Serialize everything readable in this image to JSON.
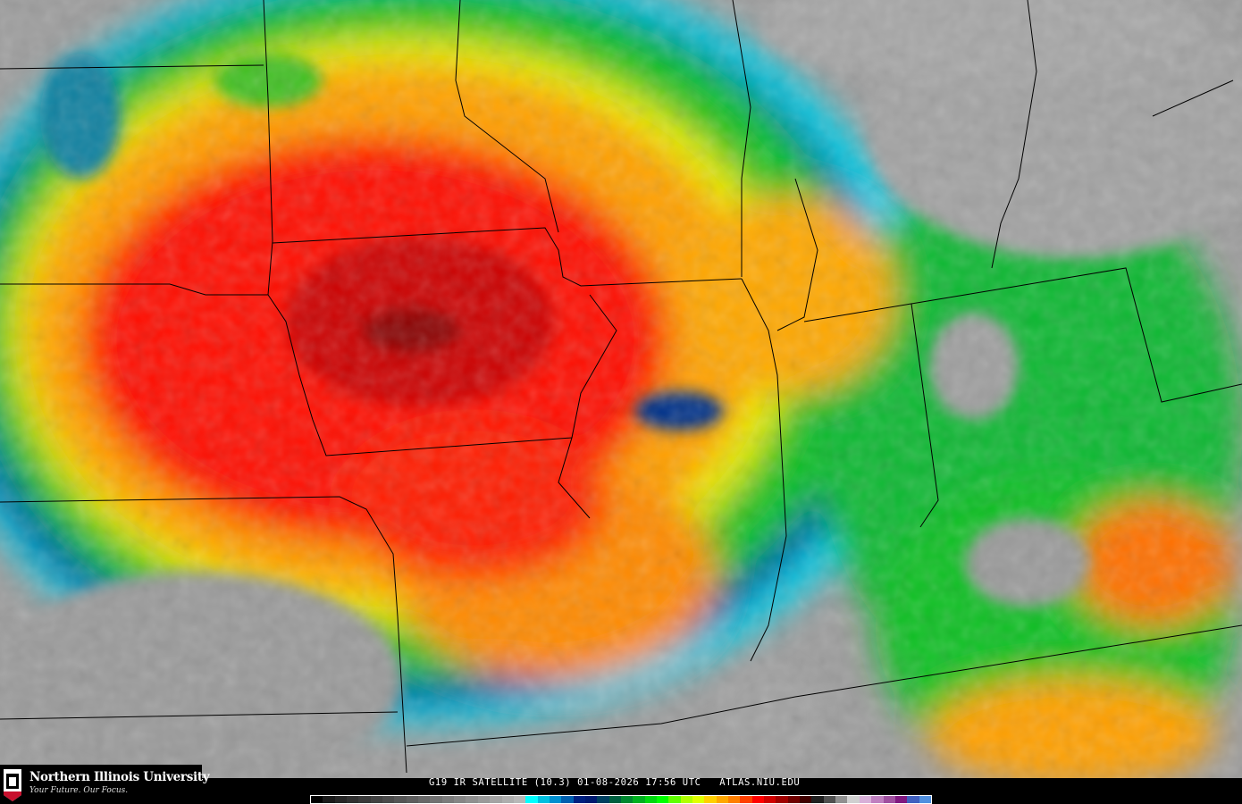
{
  "image": {
    "caption": "G19 IR SATELLITE (10.3) 01-08-2026 17:56 UTC   ATLAS.NIU.EDU"
  },
  "logo": {
    "name": "Northern Illinois University",
    "tagline": "Your Future. Our Focus.",
    "badge": "NIU"
  },
  "colorbar": {
    "colors": [
      "#000000",
      "#1a1a1a",
      "#262626",
      "#303030",
      "#393939",
      "#424242",
      "#4b4b4b",
      "#555555",
      "#5e5e5e",
      "#686868",
      "#727272",
      "#7c7c7c",
      "#868686",
      "#909090",
      "#9a9a9a",
      "#a4a4a4",
      "#aeaeae",
      "#b8b8b8",
      "#00ffff",
      "#00c0e0",
      "#0090d0",
      "#0060b0",
      "#002080",
      "#001a70",
      "#004060",
      "#006040",
      "#008830",
      "#00b020",
      "#00d810",
      "#00ff00",
      "#60ff00",
      "#b0ff00",
      "#e0ff00",
      "#ffd000",
      "#ffa800",
      "#ff8000",
      "#ff4000",
      "#ff0000",
      "#d00000",
      "#a00000",
      "#700000",
      "#400000",
      "#202020",
      "#505050",
      "#909090",
      "#d0d0d0",
      "#d8b0d8",
      "#c080c0",
      "#a050a0",
      "#801880",
      "#4060c0",
      "#5090e0"
    ]
  },
  "colors": {
    "background_clear": "#9c9c9c",
    "deep_convection": "#8a0000",
    "cold_cloud": "#ff0000",
    "mid_cloud": "#ffa000",
    "low_cloud": "#00d000",
    "thin_cloud": "#003090",
    "edge": "#00e8ff"
  }
}
